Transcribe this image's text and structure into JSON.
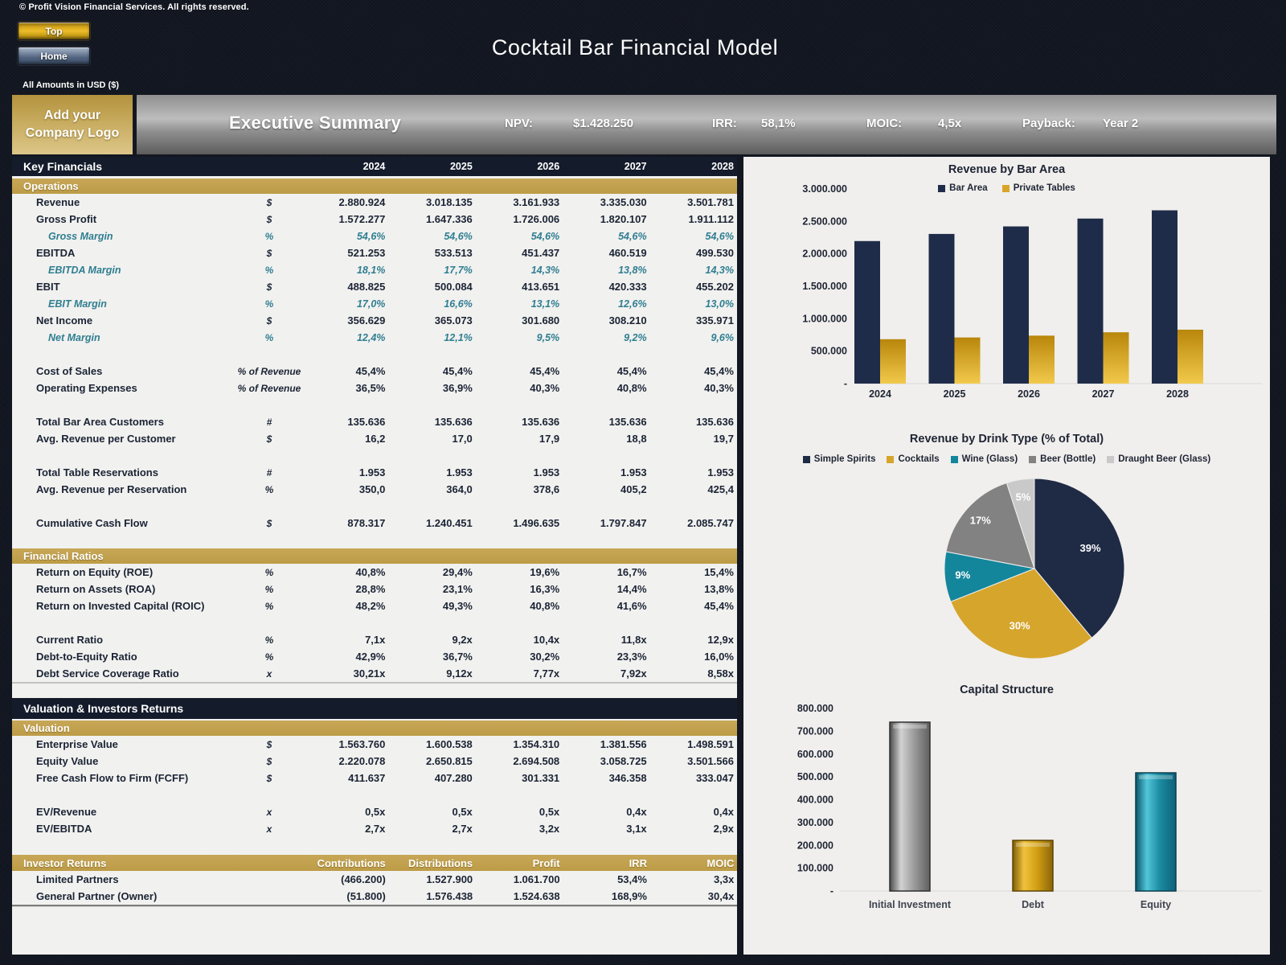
{
  "page": {
    "copyright": "© Profit Vision Financial Services. All rights reserved.",
    "title": "Cocktail Bar Financial Model",
    "amounts_note": "All Amounts in  USD ($)",
    "buttons": {
      "top": "Top",
      "home": "Home"
    },
    "logo_box": "Add your Company Logo"
  },
  "header": {
    "title": "Executive Summary",
    "metrics": [
      {
        "label": "NPV:",
        "value": "$1.428.250"
      },
      {
        "label": "IRR:",
        "value": "58,1%"
      },
      {
        "label": "MOIC:",
        "value": "4,5x"
      },
      {
        "label": "Payback:",
        "value": "Year 2"
      }
    ]
  },
  "left_panel": {
    "items": [
      {
        "kind": "navy",
        "label": "Key Financials",
        "years": [
          "2024",
          "2025",
          "2026",
          "2027",
          "2028"
        ]
      },
      {
        "kind": "gold",
        "label": "Operations"
      },
      {
        "kind": "row",
        "label": "Revenue",
        "unit": "$",
        "values": [
          "2.880.924",
          "3.018.135",
          "3.161.933",
          "3.335.030",
          "3.501.781"
        ]
      },
      {
        "kind": "row",
        "label": "Gross Profit",
        "unit": "$",
        "values": [
          "1.572.277",
          "1.647.336",
          "1.726.006",
          "1.820.107",
          "1.911.112"
        ]
      },
      {
        "kind": "row",
        "style": "margin",
        "label": "Gross Margin",
        "unit": "%",
        "values": [
          "54,6%",
          "54,6%",
          "54,6%",
          "54,6%",
          "54,6%"
        ]
      },
      {
        "kind": "row",
        "label": "EBITDA",
        "unit": "$",
        "values": [
          "521.253",
          "533.513",
          "451.437",
          "460.519",
          "499.530"
        ]
      },
      {
        "kind": "row",
        "style": "margin",
        "label": "EBITDA Margin",
        "unit": "%",
        "values": [
          "18,1%",
          "17,7%",
          "14,3%",
          "13,8%",
          "14,3%"
        ]
      },
      {
        "kind": "row",
        "label": "EBIT",
        "unit": "$",
        "values": [
          "488.825",
          "500.084",
          "413.651",
          "420.333",
          "455.202"
        ]
      },
      {
        "kind": "row",
        "style": "margin",
        "label": "EBIT Margin",
        "unit": "%",
        "values": [
          "17,0%",
          "16,6%",
          "13,1%",
          "12,6%",
          "13,0%"
        ]
      },
      {
        "kind": "row",
        "label": "Net Income",
        "unit": "$",
        "values": [
          "356.629",
          "365.073",
          "301.680",
          "308.210",
          "335.971"
        ]
      },
      {
        "kind": "row",
        "style": "margin",
        "label": "Net Margin",
        "unit": "%",
        "values": [
          "12,4%",
          "12,1%",
          "9,5%",
          "9,2%",
          "9,6%"
        ]
      },
      {
        "kind": "spacer"
      },
      {
        "kind": "row",
        "label": "Cost of Sales",
        "unit": "% of Revenue",
        "values": [
          "45,4%",
          "45,4%",
          "45,4%",
          "45,4%",
          "45,4%"
        ]
      },
      {
        "kind": "row",
        "label": "Operating Expenses",
        "unit": "% of Revenue",
        "values": [
          "36,5%",
          "36,9%",
          "40,3%",
          "40,8%",
          "40,3%"
        ]
      },
      {
        "kind": "spacer"
      },
      {
        "kind": "row",
        "label": "Total Bar Area Customers",
        "unit": "#",
        "values": [
          "135.636",
          "135.636",
          "135.636",
          "135.636",
          "135.636"
        ]
      },
      {
        "kind": "row",
        "label": "Avg. Revenue per Customer",
        "unit": "$",
        "values": [
          "16,2",
          "17,0",
          "17,9",
          "18,8",
          "19,7"
        ]
      },
      {
        "kind": "spacer"
      },
      {
        "kind": "row",
        "label": "Total Table Reservations",
        "unit": "#",
        "values": [
          "1.953",
          "1.953",
          "1.953",
          "1.953",
          "1.953"
        ]
      },
      {
        "kind": "row",
        "label": "Avg. Revenue per Reservation",
        "unit": "%",
        "values": [
          "350,0",
          "364,0",
          "378,6",
          "405,2",
          "425,4"
        ]
      },
      {
        "kind": "spacer"
      },
      {
        "kind": "row",
        "label": "Cumulative Cash Flow",
        "unit": "$",
        "values": [
          "878.317",
          "1.240.451",
          "1.496.635",
          "1.797.847",
          "2.085.747"
        ]
      },
      {
        "kind": "spacer"
      },
      {
        "kind": "gold",
        "label": "Financial Ratios"
      },
      {
        "kind": "row",
        "label": "Return on Equity (ROE)",
        "unit": "%",
        "values": [
          "40,8%",
          "29,4%",
          "19,6%",
          "16,7%",
          "15,4%"
        ]
      },
      {
        "kind": "row",
        "label": "Return on Assets (ROA)",
        "unit": "%",
        "values": [
          "28,8%",
          "23,1%",
          "16,3%",
          "14,4%",
          "13,8%"
        ]
      },
      {
        "kind": "row",
        "label": "Return on Invested Capital (ROIC)",
        "unit": "%",
        "values": [
          "48,2%",
          "49,3%",
          "40,8%",
          "41,6%",
          "45,4%"
        ]
      },
      {
        "kind": "spacer"
      },
      {
        "kind": "row",
        "label": "Current Ratio",
        "unit": "%",
        "values": [
          "7,1x",
          "9,2x",
          "10,4x",
          "11,8x",
          "12,9x"
        ]
      },
      {
        "kind": "row",
        "label": "Debt-to-Equity Ratio",
        "unit": "%",
        "values": [
          "42,9%",
          "36,7%",
          "30,2%",
          "23,3%",
          "16,0%"
        ]
      },
      {
        "kind": "row",
        "label": "Debt Service Coverage Ratio",
        "unit": "x",
        "values": [
          "30,21x",
          "9,12x",
          "7,77x",
          "7,92x",
          "8,58x"
        ]
      },
      {
        "kind": "hr1"
      },
      {
        "kind": "gap",
        "h": 18
      },
      {
        "kind": "navy2",
        "label": "Valuation & Investors Returns"
      },
      {
        "kind": "gold",
        "label": "Valuation"
      },
      {
        "kind": "row",
        "label": "Enterprise Value",
        "unit": "$",
        "values": [
          "1.563.760",
          "1.600.538",
          "1.354.310",
          "1.381.556",
          "1.498.591"
        ]
      },
      {
        "kind": "row",
        "label": "Equity Value",
        "unit": "$",
        "values": [
          "2.220.078",
          "2.650.815",
          "2.694.508",
          "3.058.725",
          "3.501.566"
        ]
      },
      {
        "kind": "row",
        "label": "Free Cash Flow to Firm (FCFF)",
        "unit": "$",
        "values": [
          "411.637",
          "407.280",
          "301.331",
          "346.358",
          "333.047"
        ]
      },
      {
        "kind": "spacer"
      },
      {
        "kind": "row",
        "label": "EV/Revenue",
        "unit": "x",
        "values": [
          "0,5x",
          "0,5x",
          "0,5x",
          "0,4x",
          "0,4x"
        ]
      },
      {
        "kind": "row",
        "label": "EV/EBITDA",
        "unit": "x",
        "values": [
          "2,7x",
          "2,7x",
          "3,2x",
          "3,1x",
          "2,9x"
        ]
      },
      {
        "kind": "gap",
        "h": 22
      },
      {
        "kind": "goldcols",
        "label": "Investor Returns",
        "cols": [
          "Contributions",
          "Distributions",
          "Profit",
          "IRR",
          "MOIC"
        ]
      },
      {
        "kind": "irrow",
        "label": "Limited Partners",
        "values": [
          "(466.200)",
          "1.527.900",
          "1.061.700",
          "53,4%",
          "3,3x"
        ]
      },
      {
        "kind": "irrow",
        "label": "General Partner (Owner)",
        "values": [
          "(51.800)",
          "1.576.438",
          "1.524.638",
          "168,9%",
          "30,4x"
        ]
      },
      {
        "kind": "hr2"
      }
    ]
  },
  "chart_data": [
    {
      "type": "bar",
      "title": "Revenue by Bar Area",
      "categories": [
        "2024",
        "2025",
        "2026",
        "2027",
        "2028"
      ],
      "series": [
        {
          "name": "Bar Area",
          "color": "#1f2c49",
          "values": [
            2197000,
            2307000,
            2423000,
            2544000,
            2671000
          ]
        },
        {
          "name": "Private Tables",
          "color": "#d9a42a",
          "values": [
            684000,
            711000,
            739000,
            791000,
            831000
          ]
        }
      ],
      "ylim": [
        0,
        3000000
      ],
      "ytick_step": 500000,
      "yticks": [
        "-",
        "500.000",
        "1.000.000",
        "1.500.000",
        "2.000.000",
        "2.500.000",
        "3.000.000"
      ],
      "grid": false,
      "legend_position": "top"
    },
    {
      "type": "pie",
      "title": "Revenue by Drink Type (% of Total)",
      "labels": [
        "Simple Spirits",
        "Cocktails",
        "Wine (Glass)",
        "Beer (Bottle)",
        "Draught Beer (Glass)"
      ],
      "values": [
        39,
        30,
        9,
        17,
        5
      ],
      "value_labels": [
        "39%",
        "30%",
        "9%",
        "17%",
        "5%"
      ],
      "colors": [
        "#1f2a44",
        "#d6a52c",
        "#14869c",
        "#828282",
        "#c9c9c9"
      ],
      "legend_position": "top"
    },
    {
      "type": "bar",
      "title": "Capital Structure",
      "categories": [
        "Initial Investment",
        "Debt",
        "Equity"
      ],
      "values": [
        740000,
        222000,
        518000
      ],
      "bar_styles": [
        "gray",
        "gold",
        "teal"
      ],
      "ylim": [
        0,
        800000
      ],
      "ytick_step": 100000,
      "yticks": [
        "-",
        "100.000",
        "200.000",
        "300.000",
        "400.000",
        "500.000",
        "600.000",
        "700.000",
        "800.000"
      ],
      "grid": false
    }
  ],
  "colors": {
    "accent_gold": "#c3a351",
    "band_navy": "#141b2b",
    "margin_teal": "#2f7e91",
    "panel_bg": "#f1f1ef"
  }
}
